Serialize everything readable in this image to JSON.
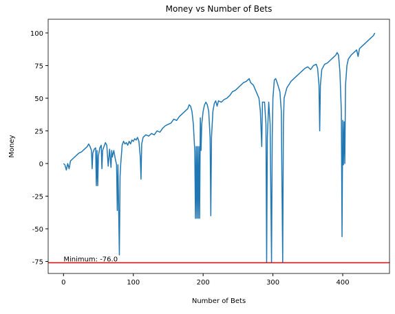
{
  "chart_data": {
    "type": "line",
    "title": "Money vs Number of Bets",
    "xlabel": "Number of Bets",
    "ylabel": "Money",
    "x": [
      0,
      2,
      4,
      6,
      8,
      10,
      14,
      18,
      22,
      26,
      30,
      34,
      36,
      38,
      40,
      41,
      42,
      44,
      46,
      47,
      48,
      49,
      50,
      52,
      54,
      55,
      56,
      58,
      60,
      62,
      64,
      66,
      68,
      69,
      70,
      72,
      74,
      76,
      77,
      78,
      80,
      81,
      82,
      84,
      86,
      88,
      90,
      92,
      94,
      96,
      98,
      100,
      102,
      104,
      106,
      108,
      110,
      111,
      112,
      114,
      118,
      122,
      126,
      130,
      134,
      138,
      142,
      146,
      150,
      154,
      158,
      162,
      166,
      170,
      174,
      178,
      180,
      182,
      184,
      186,
      188,
      189,
      190,
      191,
      192,
      193,
      194,
      195,
      196,
      197,
      198,
      200,
      202,
      204,
      206,
      208,
      210,
      211,
      212,
      214,
      216,
      218,
      220,
      222,
      226,
      230,
      234,
      238,
      242,
      246,
      250,
      254,
      258,
      262,
      266,
      268,
      272,
      276,
      280,
      282,
      284,
      285,
      288,
      290,
      291,
      292,
      294,
      296,
      298,
      299,
      300,
      302,
      304,
      306,
      310,
      312,
      314,
      315,
      316,
      320,
      326,
      330,
      334,
      338,
      342,
      346,
      350,
      354,
      358,
      362,
      364,
      366,
      367,
      368,
      370,
      374,
      378,
      382,
      386,
      390,
      392,
      394,
      396,
      398,
      399,
      400,
      401,
      402,
      403,
      404,
      406,
      408,
      412,
      416,
      420,
      422,
      424,
      428,
      432,
      436,
      440,
      444,
      446
    ],
    "series": [
      {
        "name": "Money",
        "color": "#1f77b4",
        "values": [
          0,
          -1,
          -5,
          0,
          -4,
          2,
          4,
          6,
          8,
          9,
          11,
          13,
          15,
          13,
          10,
          -4,
          8,
          11,
          12,
          -17,
          10,
          -17,
          6,
          12,
          14,
          -4,
          10,
          13,
          16,
          14,
          -2,
          11,
          -3,
          10,
          5,
          10,
          4,
          -1,
          -36,
          -1,
          -70,
          -10,
          0,
          14,
          17,
          15,
          16,
          14,
          17,
          15,
          18,
          17,
          19,
          18,
          20,
          17,
          5,
          -12,
          15,
          20,
          22,
          21,
          23,
          22,
          25,
          24,
          27,
          29,
          30,
          31,
          34,
          33,
          36,
          38,
          40,
          42,
          45,
          44,
          40,
          30,
          10,
          -42,
          13,
          -42,
          13,
          -42,
          13,
          -42,
          35,
          10,
          30,
          40,
          45,
          47,
          45,
          40,
          20,
          -40,
          20,
          40,
          46,
          48,
          44,
          48,
          47,
          49,
          50,
          52,
          55,
          56,
          58,
          60,
          62,
          63,
          65,
          62,
          60,
          55,
          50,
          40,
          13,
          47,
          47,
          30,
          -76,
          20,
          47,
          30,
          -76,
          20,
          50,
          64,
          65,
          62,
          55,
          40,
          -76,
          30,
          50,
          58,
          63,
          65,
          67,
          69,
          71,
          73,
          74,
          72,
          75,
          76,
          73,
          60,
          25,
          60,
          72,
          76,
          77,
          79,
          81,
          83,
          85,
          83,
          70,
          40,
          -56,
          33,
          -1,
          32,
          0,
          60,
          75,
          80,
          83,
          85,
          87,
          82,
          88,
          90,
          92,
          94,
          96,
          98,
          100
        ]
      }
    ],
    "xlim": [
      -22,
      467
    ],
    "ylim": [
      -84.2,
      110.5
    ],
    "xticks": [
      0,
      100,
      200,
      300,
      400
    ],
    "yticks": [
      -75,
      -50,
      -25,
      0,
      25,
      50,
      75,
      100
    ],
    "hline": {
      "value": -76,
      "color": "red"
    },
    "annotation": {
      "text": "Minimum: -76.0",
      "x": 0,
      "y": -76
    }
  }
}
